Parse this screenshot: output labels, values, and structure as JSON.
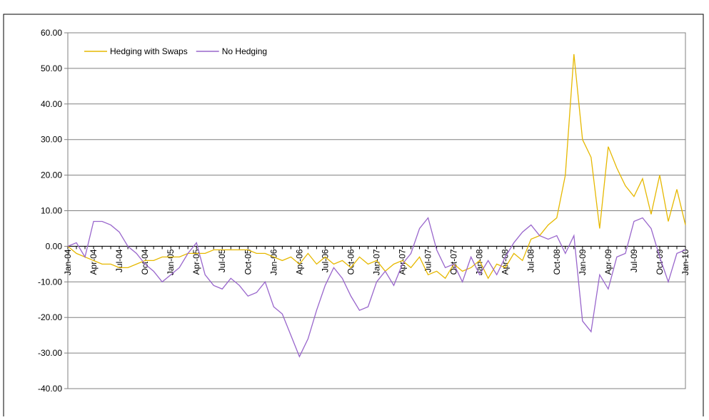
{
  "chart_data": {
    "type": "line",
    "categories": [
      "Jan-04",
      null,
      null,
      "Apr-04",
      null,
      null,
      "Jul-04",
      null,
      null,
      "Oct-04",
      null,
      null,
      "Jan-05",
      null,
      null,
      "Apr-05",
      null,
      null,
      "Jul-05",
      null,
      null,
      "Oct-05",
      null,
      null,
      "Jan-06",
      null,
      null,
      "Apr-06",
      null,
      null,
      "Jul-06",
      null,
      null,
      "Oct-06",
      null,
      null,
      "Jan-07",
      null,
      null,
      "Apr-07",
      null,
      null,
      "Jul-07",
      null,
      null,
      "Oct-07",
      null,
      null,
      "Jan-08",
      null,
      null,
      "Apr-08",
      null,
      null,
      "Jul-08",
      null,
      null,
      "Oct-08",
      null,
      null,
      "Jan-09",
      null,
      null,
      "Apr-09",
      null,
      null,
      "Jul-09",
      null,
      null,
      "Oct-09",
      null,
      null,
      "Jan-10"
    ],
    "series": [
      {
        "name": "Hedging with Swaps",
        "color": "#e6b800",
        "values": [
          0,
          -2,
          -3,
          -4,
          -5,
          -5,
          -6,
          -6,
          -5,
          -4,
          -4,
          -3,
          -3,
          -3,
          -2,
          -2,
          -2,
          -1,
          -1,
          -1,
          -1,
          -1,
          -2,
          -2,
          -3,
          -4,
          -3,
          -5,
          -2,
          -5,
          -3,
          -5,
          -4,
          -6,
          -3,
          -5,
          -4,
          -7,
          -5,
          -4,
          -6,
          -3,
          -8,
          -7,
          -9,
          -5,
          -7,
          -6,
          -4,
          -9,
          -5,
          -6,
          -2,
          -4,
          2,
          3,
          6,
          8,
          20,
          54,
          30,
          25,
          5,
          28,
          22,
          17,
          14,
          19,
          9,
          20,
          7,
          16,
          6
        ]
      },
      {
        "name": "No Hedging",
        "color": "#9966cc",
        "values": [
          0,
          1,
          -3,
          7,
          7,
          6,
          4,
          0,
          -2,
          -5,
          -7,
          -10,
          -8,
          -6,
          -2,
          1,
          -8,
          -11,
          -12,
          -9,
          -11,
          -14,
          -13,
          -10,
          -17,
          -19,
          -25,
          -31,
          -26,
          -18,
          -11,
          -6,
          -9,
          -14,
          -18,
          -17,
          -10,
          -7,
          -11,
          -5,
          -2,
          5,
          8,
          -1,
          -6,
          -5,
          -10,
          -3,
          -8,
          -4,
          -8,
          -3,
          1,
          4,
          6,
          3,
          2,
          3,
          -2,
          3,
          -21,
          -24,
          -8,
          -12,
          -3,
          -2,
          7,
          8,
          5,
          -3,
          -10,
          -2,
          -1
        ]
      }
    ],
    "ylim": [
      -40,
      60
    ],
    "yticks": [
      {
        "value": -40,
        "label": "-40.00"
      },
      {
        "value": -30,
        "label": "-30.00"
      },
      {
        "value": -20,
        "label": "-20.00"
      },
      {
        "value": -10,
        "label": "-10.00"
      },
      {
        "value": 0,
        "label": "0.00"
      },
      {
        "value": 10,
        "label": "10.00"
      },
      {
        "value": 20,
        "label": "20.00"
      },
      {
        "value": 30,
        "label": "30.00"
      },
      {
        "value": 40,
        "label": "40.00"
      },
      {
        "value": 50,
        "label": "50.00"
      },
      {
        "value": 60,
        "label": "60.00"
      }
    ],
    "grid": true
  }
}
